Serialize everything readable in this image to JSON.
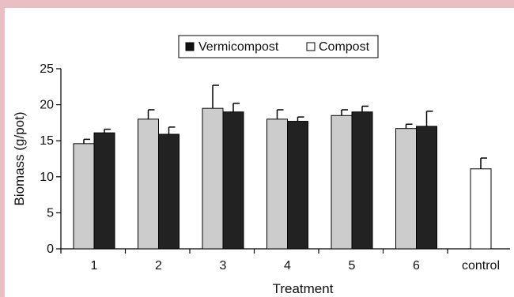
{
  "chart_data": {
    "type": "bar",
    "xlabel": "Treatment",
    "ylabel": "Biomass (g/pot)",
    "ylim": [
      0,
      25
    ],
    "yticks": [
      0,
      5,
      10,
      15,
      20,
      25
    ],
    "categories": [
      "1",
      "2",
      "3",
      "4",
      "5",
      "6",
      "control"
    ],
    "legend_position": "top-center",
    "series": [
      {
        "name": "Compost",
        "color": "#cccccc",
        "values": [
          14.6,
          18.0,
          19.5,
          18.0,
          18.5,
          16.7,
          null
        ],
        "errors": [
          0.6,
          1.3,
          3.2,
          1.3,
          0.8,
          0.6,
          null
        ]
      },
      {
        "name": "Vermicompost",
        "color": "#222222",
        "values": [
          16.1,
          15.9,
          19.0,
          17.7,
          19.0,
          17.0,
          null
        ],
        "errors": [
          0.5,
          1.0,
          1.2,
          0.6,
          0.8,
          2.1,
          null
        ]
      },
      {
        "name": "",
        "color": "#ffffff",
        "values": [
          null,
          null,
          null,
          null,
          null,
          null,
          11.1
        ],
        "errors": [
          null,
          null,
          null,
          null,
          null,
          null,
          1.5
        ]
      }
    ]
  }
}
